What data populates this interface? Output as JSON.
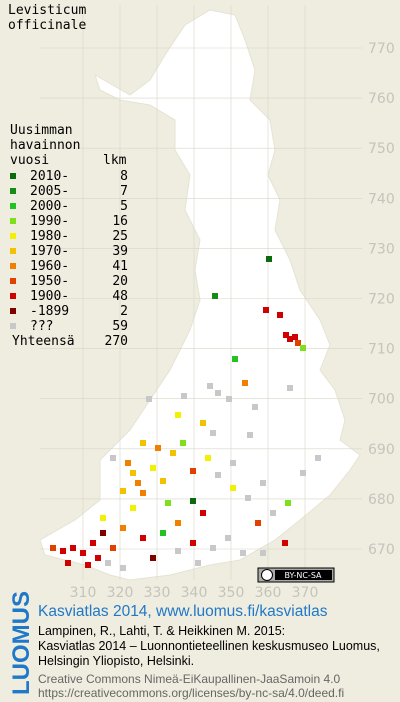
{
  "title": [
    "Levisticum",
    "officinale"
  ],
  "legend": {
    "heading": [
      "Uusimman",
      "havainnon",
      "vuosi"
    ],
    "count_heading": "lkm",
    "rows": [
      {
        "label": "2010-",
        "count": 8,
        "color": "#0b6a0b"
      },
      {
        "label": "2005-",
        "count": 7,
        "color": "#168c16"
      },
      {
        "label": "2000-",
        "count": 5,
        "color": "#22c222"
      },
      {
        "label": "1990-",
        "count": 16,
        "color": "#7ee01c"
      },
      {
        "label": "1980-",
        "count": 25,
        "color": "#f2f200"
      },
      {
        "label": "1970-",
        "count": 39,
        "color": "#f2c200"
      },
      {
        "label": "1960-",
        "count": 41,
        "color": "#f08000"
      },
      {
        "label": "1950-",
        "count": 20,
        "color": "#e04000"
      },
      {
        "label": "1900-",
        "count": 48,
        "color": "#d00000"
      },
      {
        "label": "-1899",
        "count": 2,
        "color": "#800000"
      },
      {
        "label": "???",
        "count": 59,
        "color": "#c8c8c8"
      }
    ],
    "total_label": "Yhteensä",
    "total": 270
  },
  "yticks": [
    770,
    760,
    750,
    740,
    730,
    720,
    710,
    700,
    690,
    680,
    670
  ],
  "xticks": [
    310,
    320,
    330,
    340,
    350,
    360,
    370
  ],
  "license_badge": "BY-NC-SA",
  "footer": {
    "logo": "LUOMUS",
    "headline": "Kasviatlas 2014, www.luomus.fi/kasviatlas",
    "citation": [
      "Lampinen, R., Lahti, T. & Heikkinen M. 2015:",
      "Kasviatlas 2014 – Luonnontieteellinen keskusmuseo Luomus,",
      "Helsingin Yliopisto, Helsinki."
    ],
    "license": [
      "Creative Commons Nimeä-EiKaupallinen-JaaSamoin 4.0",
      "https://creativecommons.org/licenses/by-nc-sa/4.0/deed.fi"
    ]
  }
}
